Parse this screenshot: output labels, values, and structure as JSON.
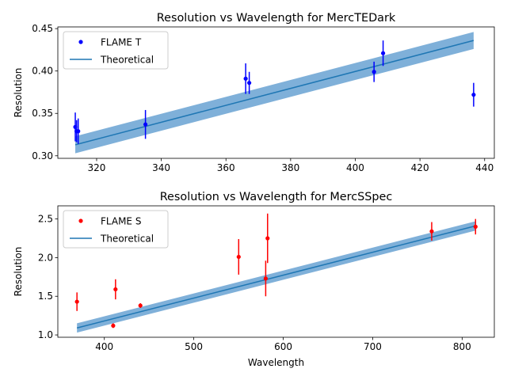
{
  "chart_data": [
    {
      "type": "scatter",
      "title": "Resolution vs Wavelength for MercTEDark",
      "xlabel": "",
      "ylabel": "Resolution",
      "xlim": [
        308,
        443
      ],
      "ylim": [
        0.297,
        0.452
      ],
      "xticks": [
        320,
        340,
        360,
        380,
        400,
        420,
        440
      ],
      "yticks": [
        0.3,
        0.35,
        0.4,
        0.45
      ],
      "xtick_labels": [
        "320",
        "340",
        "360",
        "380",
        "400",
        "420",
        "440"
      ],
      "ytick_labels": [
        "0.30",
        "0.35",
        "0.40",
        "0.45"
      ],
      "grid": false,
      "legend_position": "top-left",
      "series": [
        {
          "name": "FLAME T",
          "kind": "points_with_errorbars",
          "color": "#0000ff",
          "x": [
            313.4,
            313.8,
            314.3,
            335.1,
            366.1,
            367.2,
            405.8,
            408.6,
            436.6
          ],
          "y": [
            0.334,
            0.329,
            0.329,
            0.337,
            0.391,
            0.386,
            0.399,
            0.421,
            0.372
          ],
          "yerr": [
            0.017,
            0.013,
            0.015,
            0.017,
            0.018,
            0.013,
            0.012,
            0.015,
            0.014
          ]
        },
        {
          "name": "Theoretical",
          "kind": "line_with_band",
          "color": "#1f77b4",
          "band_color": "#7fb0d9",
          "x": [
            313.4,
            436.6
          ],
          "y": [
            0.313,
            0.436
          ],
          "band": 0.01
        }
      ]
    },
    {
      "type": "scatter",
      "title": "Resolution vs Wavelength for MercSSpec",
      "xlabel": "Wavelength",
      "ylabel": "Resolution",
      "xlim": [
        348,
        836
      ],
      "ylim": [
        0.97,
        2.67
      ],
      "xticks": [
        400,
        500,
        600,
        700,
        800
      ],
      "yticks": [
        1.0,
        1.5,
        2.0,
        2.5
      ],
      "xtick_labels": [
        "400",
        "500",
        "600",
        "700",
        "800"
      ],
      "ytick_labels": [
        "1.0",
        "1.5",
        "2.0",
        "2.5"
      ],
      "grid": false,
      "legend_position": "top-left",
      "series": [
        {
          "name": "FLAME S",
          "kind": "points_with_errorbars",
          "color": "#ff0000",
          "x": [
            369.4,
            409.9,
            412.5,
            440.3,
            550.2,
            580.4,
            582.5,
            766.0,
            815.0
          ],
          "y": [
            1.43,
            1.12,
            1.59,
            1.38,
            2.01,
            1.73,
            2.25,
            2.34,
            2.4
          ],
          "yerr": [
            0.12,
            0.03,
            0.13,
            0.03,
            0.23,
            0.23,
            0.32,
            0.12,
            0.1
          ]
        },
        {
          "name": "Theoretical",
          "kind": "line_with_band",
          "color": "#1f77b4",
          "band_color": "#7fb0d9",
          "x": [
            369.4,
            815.0
          ],
          "y": [
            1.09,
            2.41
          ],
          "band": 0.06
        }
      ]
    }
  ]
}
